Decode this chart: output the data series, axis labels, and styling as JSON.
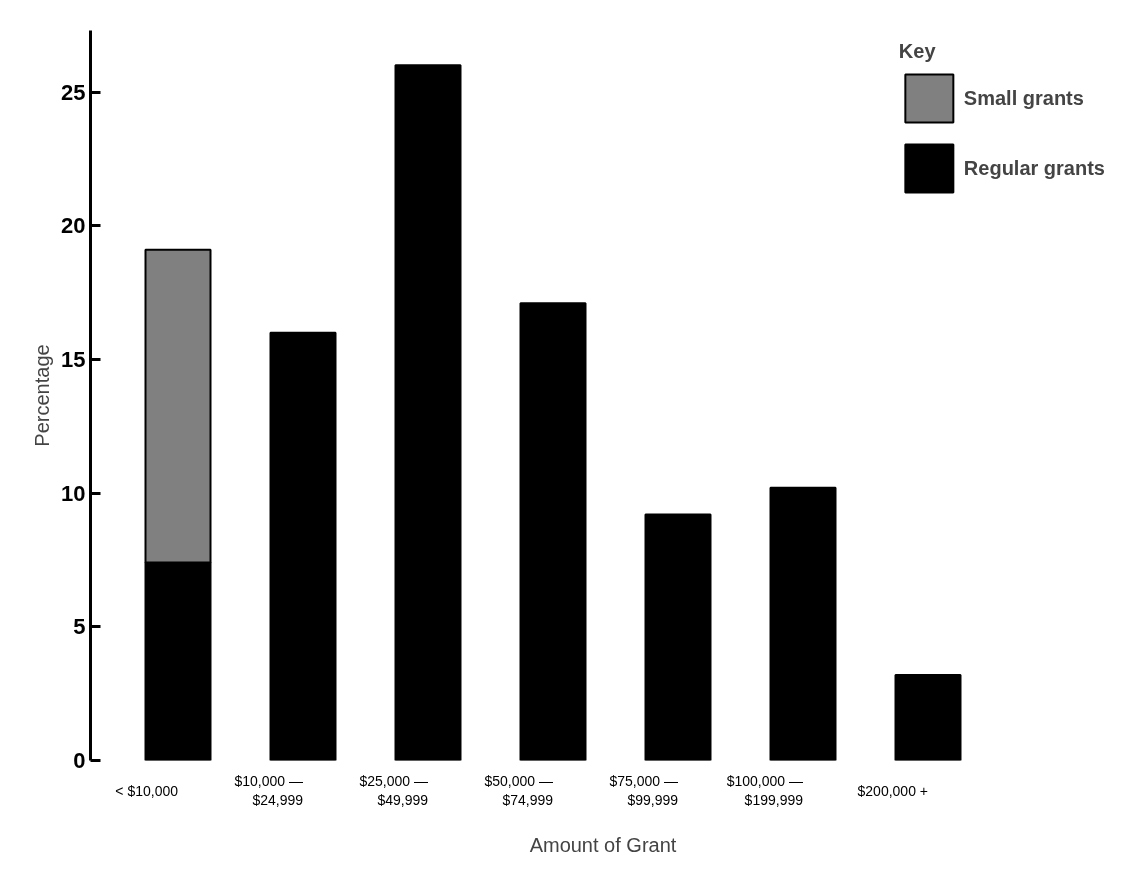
{
  "chart_data": {
    "type": "bar",
    "stacked": true,
    "xlabel": "Amount of Grant",
    "ylabel": "Percentage",
    "legend_title": "Key",
    "legend": "top right",
    "grid": false,
    "categories": [
      "< $10,000",
      "$10,000 —\n$24,999",
      "$25,000 —\n$49,999",
      "$50,000 —\n$74,999",
      "$75,000 —\n$99,999",
      "$100,000 —\n$199,999",
      "$200,000 +"
    ],
    "series": [
      {
        "name": "Regular grants",
        "color": "#000000",
        "values": [
          7.4,
          16.0,
          26.0,
          17.1,
          9.2,
          10.2,
          3.2
        ]
      },
      {
        "name": "Small grants",
        "color": "#808080",
        "values": [
          11.7,
          null,
          null,
          null,
          null,
          null,
          null
        ]
      }
    ],
    "ylim": [
      0,
      27.3
    ],
    "yticks": [
      0,
      5,
      10,
      15,
      20,
      25
    ]
  }
}
